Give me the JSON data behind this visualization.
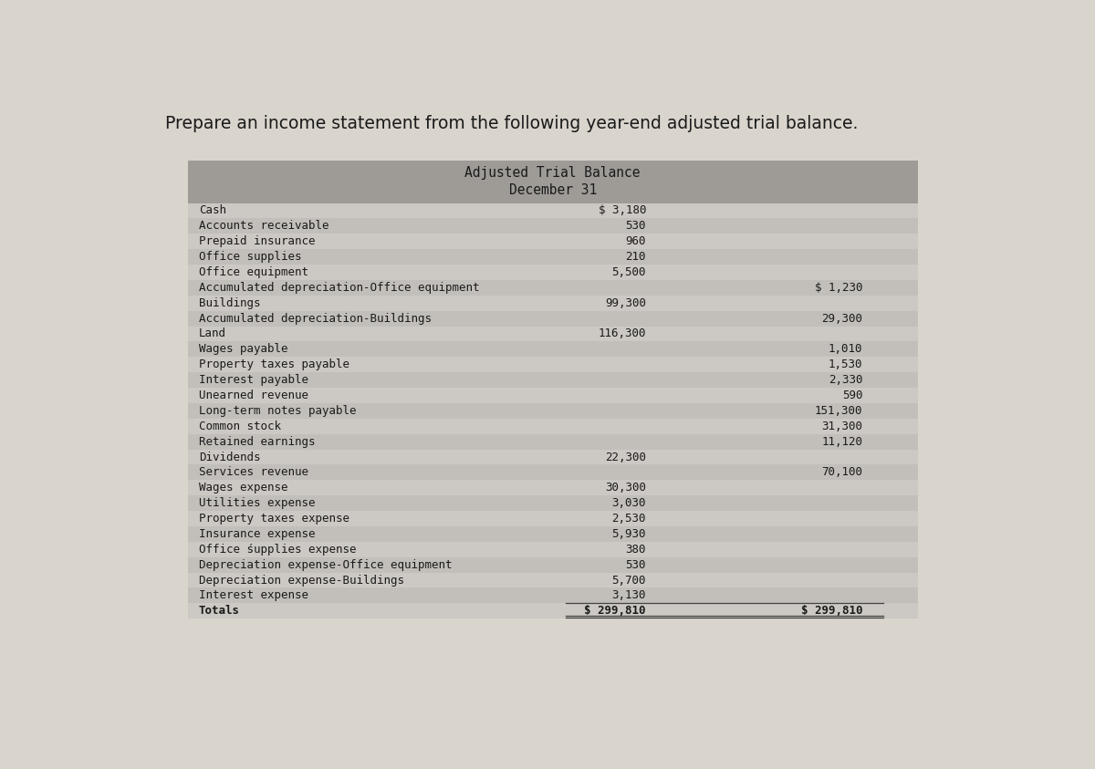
{
  "page_title": "Prepare an income statement from the following year-end adjusted trial balance.",
  "table_title_line1": "Adjusted Trial Balance",
  "table_title_line2": "December 31",
  "page_bg_color": "#d9d4cc",
  "table_bg_even": "#ccc8c3",
  "table_bg_odd": "#c2bfba",
  "header_bg_color": "#9e9b97",
  "rows": [
    {
      "label": "Cash",
      "debit": "$ 3,180",
      "credit": ""
    },
    {
      "label": "Accounts receivable",
      "debit": "530",
      "credit": ""
    },
    {
      "label": "Prepaid insurance",
      "debit": "960",
      "credit": ""
    },
    {
      "label": "Office supplies",
      "debit": "210",
      "credit": ""
    },
    {
      "label": "Office equipment",
      "debit": "5,500",
      "credit": ""
    },
    {
      "label": "Accumulated depreciation-Office equipment",
      "debit": "",
      "credit": "$ 1,230"
    },
    {
      "label": "Buildings",
      "debit": "99,300",
      "credit": ""
    },
    {
      "label": "Accumulated depreciation-Buildings",
      "debit": "",
      "credit": "29,300"
    },
    {
      "label": "Land",
      "debit": "116,300",
      "credit": ""
    },
    {
      "label": "Wages payable",
      "debit": "",
      "credit": "1,010"
    },
    {
      "label": "Property taxes payable",
      "debit": "",
      "credit": "1,530"
    },
    {
      "label": "Interest payable",
      "debit": "",
      "credit": "2,330"
    },
    {
      "label": "Unearned revenue",
      "debit": "",
      "credit": "590"
    },
    {
      "label": "Long-term notes payable",
      "debit": "",
      "credit": "151,300"
    },
    {
      "label": "Common stock",
      "debit": "",
      "credit": "31,300"
    },
    {
      "label": "Retained earnings",
      "debit": "",
      "credit": "11,120"
    },
    {
      "label": "Dividends",
      "debit": "22,300",
      "credit": ""
    },
    {
      "label": "Services revenue",
      "debit": "",
      "credit": "70,100"
    },
    {
      "label": "Wages expense",
      "debit": "30,300",
      "credit": ""
    },
    {
      "label": "Utilities expense",
      "debit": "3,030",
      "credit": ""
    },
    {
      "label": "Property taxes expense",
      "debit": "2,530",
      "credit": ""
    },
    {
      "label": "Insurance expense",
      "debit": "5,930",
      "credit": ""
    },
    {
      "label": "Office śupplies expense",
      "debit": "380",
      "credit": ""
    },
    {
      "label": "Depreciation expense-Office equipment",
      "debit": "530",
      "credit": ""
    },
    {
      "label": "Depreciation expense-Buildings",
      "debit": "5,700",
      "credit": ""
    },
    {
      "label": "Interest expense",
      "debit": "3,130",
      "credit": ""
    },
    {
      "label": "Totals",
      "debit": "$ 299,810",
      "credit": "$ 299,810"
    }
  ],
  "label_fontsize": 9.0,
  "value_fontsize": 9.0,
  "title_fontsize": 10.5,
  "page_title_fontsize": 13.5,
  "text_color": "#1a1a1a",
  "line_color": "#444444"
}
